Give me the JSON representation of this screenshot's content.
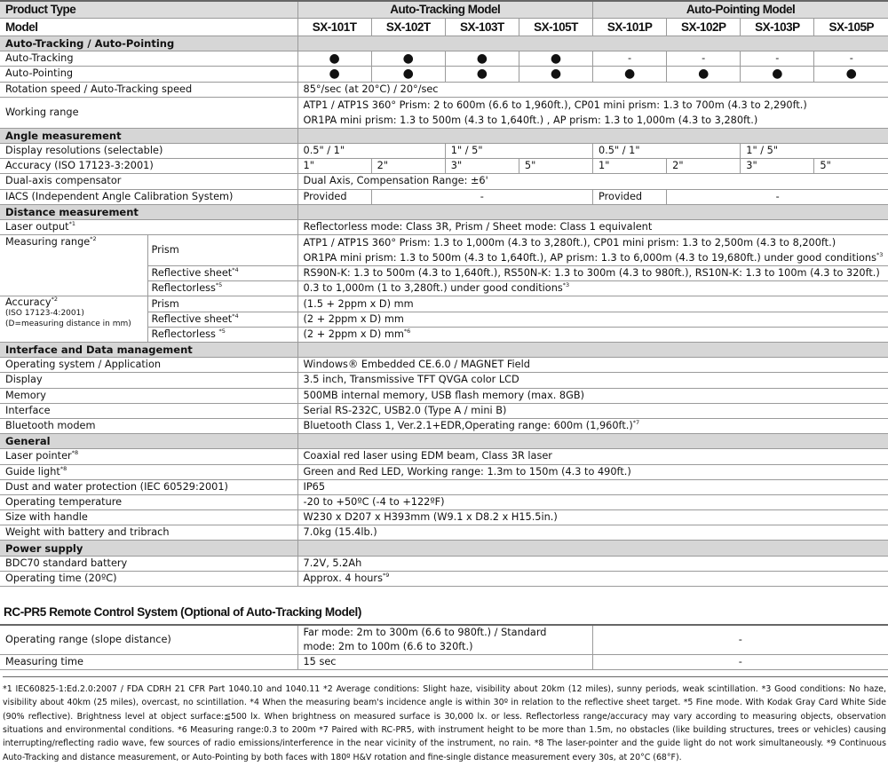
{
  "header": {
    "product_type_label": "Product Type",
    "auto_tracking_model": "Auto-Tracking Model",
    "auto_pointing_model": "Auto-Pointing Model",
    "model_label": "Model",
    "models": [
      "SX-101T",
      "SX-102T",
      "SX-103T",
      "SX-105T",
      "SX-101P",
      "SX-102P",
      "SX-103P",
      "SX-105P"
    ]
  },
  "sections": [
    {
      "title": "Auto-Tracking / Auto-Pointing",
      "rows": [
        {
          "label": "Auto-Tracking",
          "cells": [
            {
              "t": "●",
              "c": 1
            },
            {
              "t": "●",
              "c": 1
            },
            {
              "t": "●",
              "c": 1
            },
            {
              "t": "●",
              "c": 1
            },
            {
              "t": "-",
              "c": 1
            },
            {
              "t": "-",
              "c": 1
            },
            {
              "t": "-",
              "c": 1
            },
            {
              "t": "-",
              "c": 1
            }
          ]
        },
        {
          "label": "Auto-Pointing",
          "cells": [
            {
              "t": "●",
              "c": 1
            },
            {
              "t": "●",
              "c": 1
            },
            {
              "t": "●",
              "c": 1
            },
            {
              "t": "●",
              "c": 1
            },
            {
              "t": "●",
              "c": 1
            },
            {
              "t": "●",
              "c": 1
            },
            {
              "t": "●",
              "c": 1
            },
            {
              "t": "●",
              "c": 1
            }
          ]
        },
        {
          "label": "Rotation speed / Auto-Tracking speed",
          "cells": [
            {
              "t": "85°/sec (at 20°C) / 20°/sec",
              "span": 8
            }
          ]
        },
        {
          "label": "Working range",
          "cells": [
            {
              "lines": [
                "ATP1 / ATP1S 360° Prism: 2 to 600m (6.6 to 1,960ft.), CP01 mini prism: 1.3 to 700m (4.3 to 2,290ft.)",
                "OR1PA mini prism: 1.3 to 500m (4.3 to 1,640ft.) , AP prism: 1.3 to 1,000m (4.3 to 3,280ft.)"
              ],
              "span": 8
            }
          ]
        }
      ]
    },
    {
      "title": "Angle measurement",
      "rows": [
        {
          "label": "Display resolutions (selectable)",
          "cells": [
            {
              "t": "0.5\" / 1\"",
              "span": 2
            },
            {
              "t": "1\" / 5\"",
              "span": 2
            },
            {
              "t": "0.5\" / 1\"",
              "span": 2
            },
            {
              "t": "1\" / 5\"",
              "span": 2
            }
          ]
        },
        {
          "label": "Accuracy (ISO 17123-3:2001)",
          "cells": [
            {
              "t": "1\""
            },
            {
              "t": "2\""
            },
            {
              "t": "3\""
            },
            {
              "t": "5\""
            },
            {
              "t": "1\""
            },
            {
              "t": "2\""
            },
            {
              "t": "3\""
            },
            {
              "t": "5\""
            }
          ]
        },
        {
          "label": "Dual-axis compensator",
          "cells": [
            {
              "t": "Dual Axis, Compensation Range: ±6'",
              "span": 8
            }
          ]
        },
        {
          "label": "IACS (Independent Angle Calibration System)",
          "cells": [
            {
              "t": "Provided"
            },
            {
              "t": "-",
              "span": 3,
              "c": 1
            },
            {
              "t": "Provided"
            },
            {
              "t": "-",
              "span": 3,
              "c": 1
            }
          ]
        }
      ]
    },
    {
      "title": "Distance measurement",
      "rows": [
        {
          "label": "Laser output",
          "label_sup": "*1",
          "cells": [
            {
              "t": "Reflectorless mode: Class 3R, Prism / Sheet mode: Class 1 equivalent",
              "span": 8
            }
          ]
        },
        {
          "label": "Measuring range",
          "label_sup": "*2",
          "rowspan": 3,
          "sub": "Prism",
          "cells": [
            {
              "lines": [
                "ATP1 / ATP1S 360° Prism: 1.3 to 1,000m (4.3 to 3,280ft.), CP01 mini prism: 1.3 to 2,500m (4.3 to 8,200ft.)",
                "OR1PA mini prism: 1.3 to 500m (4.3 to 1,640ft.), AP prism: 1.3 to 6,000m (4.3 to 19,680ft.) under good conditions"
              ],
              "sup": "*3",
              "span": 8
            }
          ]
        },
        {
          "skip": 1,
          "sub": "Reflective sheet",
          "sub_sup": "*4",
          "cells": [
            {
              "t": "RS90N-K: 1.3 to 500m (4.3 to 1,640ft.), RS50N-K: 1.3 to 300m (4.3 to 980ft.), RS10N-K: 1.3 to 100m (4.3 to 320ft.)",
              "span": 8
            }
          ]
        },
        {
          "skip": 1,
          "sub": "Reflectorless",
          "sub_sup": "*5",
          "cells": [
            {
              "t": "0.3 to 1,000m (1 to 3,280ft.) under good conditions",
              "sup": "*3",
              "span": 8
            }
          ]
        },
        {
          "label": "Accuracy",
          "label_sup": "*2",
          "notes": [
            "(ISO 17123-4:2001)",
            "(D=measuring distance in mm)"
          ],
          "rowspan": 3,
          "sub": "Prism",
          "cells": [
            {
              "t": "(1.5 + 2ppm x D) mm",
              "span": 8
            }
          ]
        },
        {
          "skip": 1,
          "sub": "Reflective sheet",
          "sub_sup": "*4",
          "cells": [
            {
              "t": "(2 + 2ppm x D) mm",
              "span": 8
            }
          ]
        },
        {
          "skip": 1,
          "sub": "Reflectorless ",
          "sub_sup": "*5",
          "cells": [
            {
              "t": "(2 + 2ppm x D) mm",
              "sup": "*6",
              "span": 8
            }
          ]
        }
      ]
    },
    {
      "title": "Interface and Data management",
      "rows": [
        {
          "label": "Operating system / Application",
          "cells": [
            {
              "t": "Windows® Embedded CE.6.0 / MAGNET Field",
              "span": 8
            }
          ]
        },
        {
          "label": "Display",
          "cells": [
            {
              "t": "3.5 inch, Transmissive TFT QVGA color LCD",
              "span": 8
            }
          ]
        },
        {
          "label": "Memory",
          "cells": [
            {
              "t": "500MB internal memory, USB flash memory (max. 8GB)",
              "span": 8
            }
          ]
        },
        {
          "label": "Interface",
          "cells": [
            {
              "t": "Serial RS-232C, USB2.0 (Type A / mini B)",
              "span": 8
            }
          ]
        },
        {
          "label": "Bluetooth modem",
          "cells": [
            {
              "t": "Bluetooth Class 1, Ver.2.1+EDR,Operating range: 600m (1,960ft.)",
              "sup": "*7",
              "span": 8
            }
          ]
        }
      ]
    },
    {
      "title": "General",
      "rows": [
        {
          "label": "Laser pointer",
          "label_sup": "*8",
          "cells": [
            {
              "t": "Coaxial red laser using EDM beam, Class 3R laser",
              "span": 8
            }
          ]
        },
        {
          "label": "Guide light",
          "label_sup": "*8",
          "cells": [
            {
              "t": "Green and Red LED, Working range: 1.3m to 150m (4.3 to 490ft.)",
              "span": 8
            }
          ]
        },
        {
          "label": "Dust and water protection (IEC 60529:2001)",
          "cells": [
            {
              "t": "IP65",
              "span": 8
            }
          ]
        },
        {
          "label": "Operating temperature",
          "cells": [
            {
              "t": "-20 to +50ºC (-4 to +122ºF)",
              "span": 8
            }
          ]
        },
        {
          "label": "Size with handle",
          "cells": [
            {
              "t": "W230 x D207 x H393mm (W9.1 x D8.2 x H15.5in.)",
              "span": 8
            }
          ]
        },
        {
          "label": "Weight with battery and tribrach",
          "cells": [
            {
              "t": "7.0kg (15.4lb.)",
              "span": 8
            }
          ]
        }
      ]
    },
    {
      "title": "Power supply",
      "rows": [
        {
          "label": "BDC70 standard battery",
          "cells": [
            {
              "t": "7.2V, 5.2Ah",
              "span": 8
            }
          ]
        },
        {
          "label": "Operating time (20ºC)",
          "cells": [
            {
              "t": "Approx. 4 hours",
              "sup": "*9",
              "span": 8
            }
          ]
        }
      ]
    }
  ],
  "remote": {
    "title": "RC-PR5 Remote Control System (Optional of Auto-Tracking Model)",
    "rows": [
      {
        "label": "Operating range (slope distance)",
        "value_lines": [
          "Far mode: 2m to 300m (6.6 to 980ft.) / Standard",
          "mode: 2m to 100m (6.6 to 320ft.)"
        ],
        "other": "-"
      },
      {
        "label": "Measuring time",
        "value_lines": [
          "15 sec"
        ],
        "other": "-"
      }
    ]
  },
  "footnotes": "*1 IEC60825-1:Ed.2.0:2007 / FDA CDRH 21 CFR Part 1040.10 and 1040.11 *2 Average conditions: Slight haze, visibility about 20km (12 miles), sunny periods, weak scintillation. *3 Good conditions: No haze, visibility about 40km (25 miles), overcast, no scintillation. *4 When the measuring beam's incidence angle is within 30º in relation to the reflective sheet target. *5 Fine mode. With Kodak Gray Card White Side (90% reflective). Brightness level at object surface:≦500 lx. When brightness on measured surface is 30,000 lx. or less. Reflectorless range/accuracy may vary according to measuring objects, observation situations and environmental conditions. *6 Measuring range:0.3 to 200m *7 Paired with RC-PR5, with instrument height to be more than 1.5m, no obstacles (like building structures, trees or vehicles) causing interrupting/reflecting radio wave, few sources of radio emissions/interference in the near vicinity of the instrument, no rain. *8 The laser-pointer and the guide light do not work simultaneously. *9 Continuous Auto-Tracking and distance measurement, or Auto-Pointing by both faces with 180º H&V rotation and fine-single distance measurement every 30s, at 20°C (68°F)."
}
